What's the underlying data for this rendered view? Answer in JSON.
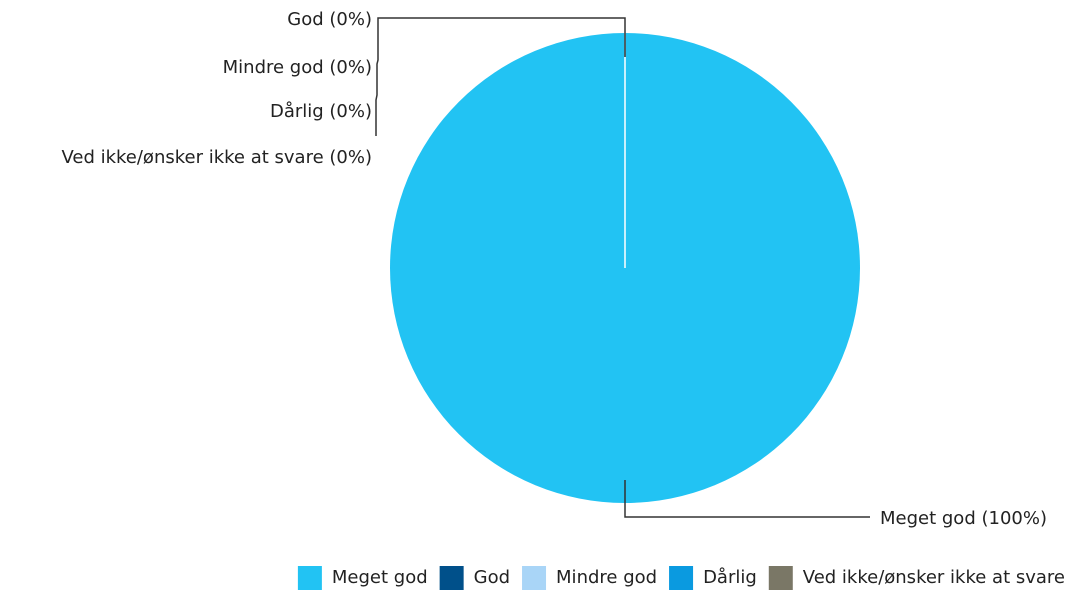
{
  "chart_data": {
    "type": "pie",
    "categories": [
      "Meget god",
      "God",
      "Mindre god",
      "Dårlig",
      "Ved ikke/ønsker ikke at svare"
    ],
    "values": [
      100,
      0,
      0,
      0,
      0
    ],
    "value_labels": [
      "Meget god (100%)",
      "God (0%)",
      "Mindre god (0%)",
      "Dårlig (0%)",
      "Ved ikke/ønsker ikke at svare (0%)"
    ],
    "colors": [
      "#22c3f3",
      "#00508a",
      "#a9d5f7",
      "#0a9ae0",
      "#7a7766"
    ],
    "legend": "bottom"
  }
}
